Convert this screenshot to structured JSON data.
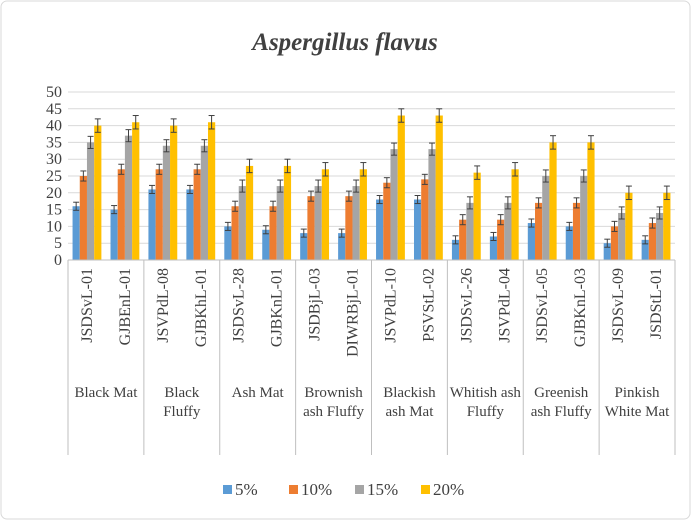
{
  "chart_data": {
    "type": "bar",
    "title": "Aspergillus flavus",
    "groups": [
      {
        "name": "Black Mat",
        "categories": [
          "JSDSvL-01",
          "GJBEnL-01"
        ]
      },
      {
        "name": "Black Fluffy",
        "categories": [
          "JSVPdL-08",
          "GJBKhL-01"
        ]
      },
      {
        "name": "Ash Mat",
        "categories": [
          "JSDSvL-28",
          "GJBKnL-01"
        ]
      },
      {
        "name": "Brownish ash Fluffy",
        "categories": [
          "JSDBjL-03",
          "DIWRBjL-01"
        ]
      },
      {
        "name": "Blackish ash Mat",
        "categories": [
          "JSVPdL-10",
          "PSVStL-02"
        ]
      },
      {
        "name": "Whitish ash Fluffy",
        "categories": [
          "JSDSvL-26",
          "JSVPdL-04"
        ]
      },
      {
        "name": "Greenish ash Fluffy",
        "categories": [
          "JSDSvL-05",
          "GJBKnL-03"
        ]
      },
      {
        "name": "Pinkish White Mat",
        "categories": [
          "JSDSvL-09",
          "JSDStL-01"
        ]
      }
    ],
    "series": [
      {
        "name": "5%",
        "color": "#5b9bd5",
        "values": [
          16,
          15,
          21,
          21,
          10,
          9,
          8,
          8,
          18,
          18,
          6,
          7,
          11,
          10,
          5,
          6
        ],
        "errors": [
          1.2,
          1.2,
          1.2,
          1.2,
          1.2,
          1.2,
          1.2,
          1.2,
          1.2,
          1.2,
          1.2,
          1.2,
          1.2,
          1.2,
          1.2,
          1.2
        ]
      },
      {
        "name": "10%",
        "color": "#ed7d31",
        "values": [
          25,
          27,
          27,
          27,
          16,
          16,
          19,
          19,
          23,
          24,
          12,
          12,
          17,
          17,
          10,
          11
        ],
        "errors": [
          1.5,
          1.5,
          1.5,
          1.5,
          1.5,
          1.5,
          1.5,
          1.5,
          1.5,
          1.5,
          1.5,
          1.5,
          1.5,
          1.5,
          1.5,
          1.5
        ]
      },
      {
        "name": "15%",
        "color": "#a5a5a5",
        "values": [
          35,
          37,
          34,
          34,
          22,
          22,
          22,
          22,
          33,
          33,
          17,
          17,
          25,
          25,
          14,
          14
        ],
        "errors": [
          1.8,
          1.8,
          1.8,
          1.8,
          1.8,
          1.8,
          1.8,
          1.8,
          1.8,
          1.8,
          1.8,
          1.8,
          1.8,
          1.8,
          1.8,
          1.8
        ]
      },
      {
        "name": "20%",
        "color": "#ffc000",
        "values": [
          40,
          41,
          40,
          41,
          28,
          28,
          27,
          27,
          43,
          43,
          26,
          27,
          35,
          35,
          20,
          20
        ],
        "errors": [
          2,
          2,
          2,
          2,
          2,
          2,
          2,
          2,
          2,
          2,
          2,
          2,
          2,
          2,
          2,
          2
        ]
      }
    ],
    "ylim": [
      0,
      50
    ],
    "yticks": [
      0,
      5,
      10,
      15,
      20,
      25,
      30,
      35,
      40,
      45,
      50
    ],
    "grid": true,
    "legend": "bottom"
  }
}
